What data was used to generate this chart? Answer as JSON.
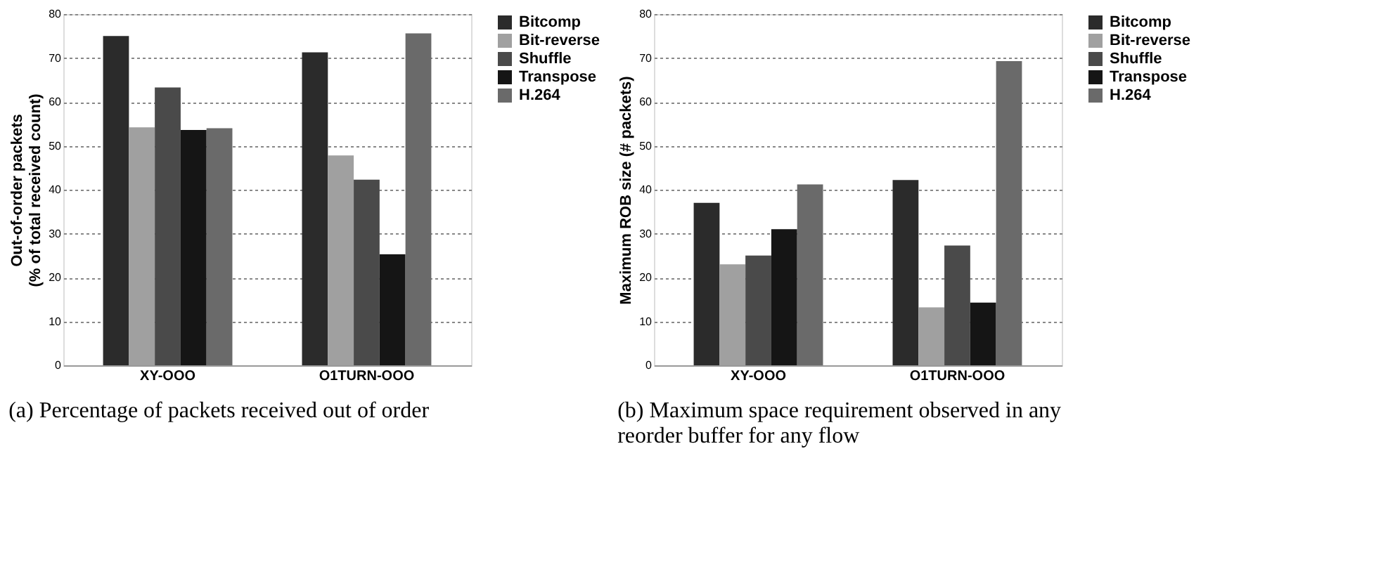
{
  "chart_data": [
    {
      "type": "bar",
      "ylabel": "Out-of-order packets\n(% of total received count)",
      "categories": [
        "XY-OOO",
        "O1TURN-OOO"
      ],
      "ylim": [
        0,
        80
      ],
      "yticks": [
        0,
        10,
        20,
        30,
        40,
        50,
        60,
        70,
        80
      ],
      "grid": "y",
      "legend": "right",
      "annotations": [
        "(a) Percentage of packets received out of order"
      ],
      "series": [
        {
          "name": "Bitcomp",
          "color": "#2b2b2b",
          "values": [
            75,
            71.3
          ]
        },
        {
          "name": "Bit-reverse",
          "color": "#a0a0a0",
          "values": [
            54.2,
            47.8
          ]
        },
        {
          "name": "Shuffle",
          "color": "#4a4a4a",
          "values": [
            63.3,
            42.3
          ]
        },
        {
          "name": "Transpose",
          "color": "#151515",
          "values": [
            53.6,
            25.3
          ]
        },
        {
          "name": "H.264",
          "color": "#6a6a6a",
          "values": [
            54,
            75.6
          ]
        }
      ]
    },
    {
      "type": "bar",
      "ylabel": "Maximum ROB size (# packets)",
      "categories": [
        "XY-OOO",
        "O1TURN-OOO"
      ],
      "ylim": [
        0,
        80
      ],
      "yticks": [
        0,
        10,
        20,
        30,
        40,
        50,
        60,
        70,
        80
      ],
      "grid": "y",
      "legend": "right",
      "annotations": [
        "(b) Maximum space requirement observed in any reorder buffer for any flow"
      ],
      "series": [
        {
          "name": "Bitcomp",
          "color": "#2b2b2b",
          "values": [
            37,
            42.2
          ]
        },
        {
          "name": "Bit-reverse",
          "color": "#a0a0a0",
          "values": [
            23,
            13.2
          ]
        },
        {
          "name": "Shuffle",
          "color": "#4a4a4a",
          "values": [
            25,
            27.3
          ]
        },
        {
          "name": "Transpose",
          "color": "#151515",
          "values": [
            31,
            14.3
          ]
        },
        {
          "name": "H.264",
          "color": "#6a6a6a",
          "values": [
            41.2,
            69.3
          ]
        }
      ]
    }
  ]
}
